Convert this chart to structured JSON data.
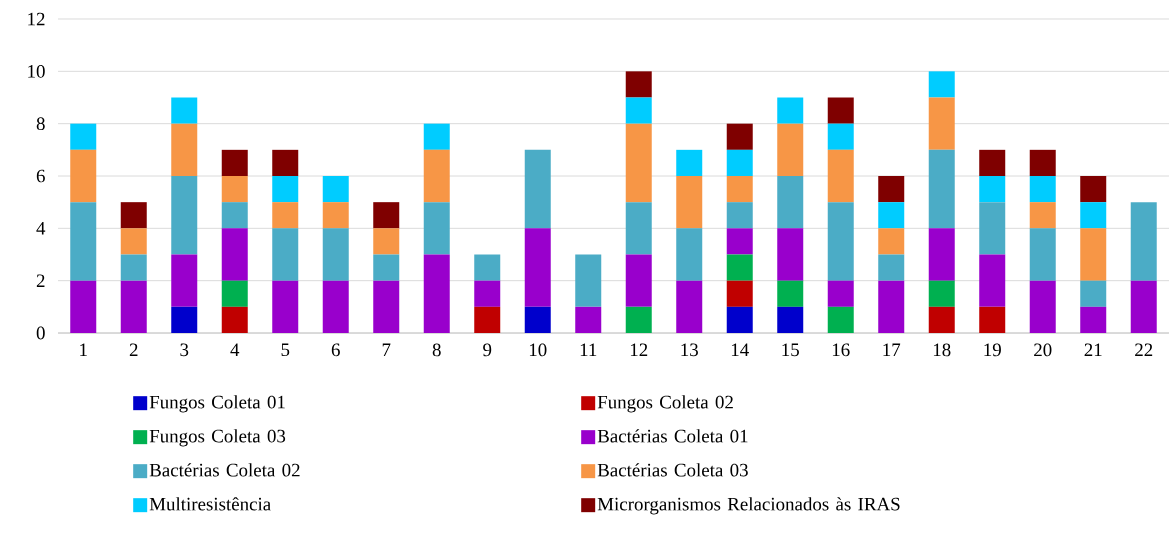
{
  "chart_data": {
    "type": "bar",
    "stacked": true,
    "categories": [
      "1",
      "2",
      "3",
      "4",
      "5",
      "6",
      "7",
      "8",
      "9",
      "10",
      "11",
      "12",
      "13",
      "14",
      "15",
      "16",
      "17",
      "18",
      "19",
      "20",
      "21",
      "22"
    ],
    "series": [
      {
        "name": "Fungos Coleta 01",
        "color": "#0000cc",
        "values": [
          0,
          0,
          1,
          0,
          0,
          0,
          0,
          0,
          0,
          1,
          0,
          0,
          0,
          1,
          1,
          0,
          0,
          0,
          0,
          0,
          0,
          0
        ]
      },
      {
        "name": "Fungos Coleta 02",
        "color": "#c00000",
        "values": [
          0,
          0,
          0,
          1,
          0,
          0,
          0,
          0,
          1,
          0,
          0,
          0,
          0,
          1,
          0,
          0,
          0,
          1,
          1,
          0,
          0,
          0
        ]
      },
      {
        "name": "Fungos Coleta 03",
        "color": "#00b050",
        "values": [
          0,
          0,
          0,
          1,
          0,
          0,
          0,
          0,
          0,
          0,
          0,
          1,
          0,
          1,
          1,
          1,
          0,
          1,
          0,
          0,
          0,
          0
        ]
      },
      {
        "name": "Bactérias Coleta 01",
        "color": "#9900cc",
        "values": [
          2,
          2,
          2,
          2,
          2,
          2,
          2,
          3,
          1,
          3,
          1,
          2,
          2,
          1,
          2,
          1,
          2,
          2,
          2,
          2,
          1,
          2
        ]
      },
      {
        "name": "Bactérias Coleta 02",
        "color": "#4bacc6",
        "values": [
          3,
          1,
          3,
          1,
          2,
          2,
          1,
          2,
          1,
          3,
          2,
          2,
          2,
          1,
          2,
          3,
          1,
          3,
          2,
          2,
          1,
          3
        ]
      },
      {
        "name": "Bactérias Coleta 03",
        "color": "#f79646",
        "values": [
          2,
          1,
          2,
          1,
          1,
          1,
          1,
          2,
          0,
          0,
          0,
          3,
          2,
          1,
          2,
          2,
          1,
          2,
          0,
          1,
          2,
          0
        ]
      },
      {
        "name": "Multiresistência",
        "color": "#00ccff",
        "values": [
          1,
          0,
          1,
          0,
          1,
          1,
          0,
          1,
          0,
          0,
          0,
          1,
          1,
          1,
          1,
          1,
          1,
          1,
          1,
          1,
          1,
          0
        ]
      },
      {
        "name": "Microrganismos Relacionados às IRAS",
        "color": "#7f0000",
        "values": [
          0,
          1,
          0,
          1,
          1,
          0,
          1,
          0,
          0,
          0,
          0,
          1,
          0,
          1,
          0,
          1,
          1,
          0,
          1,
          1,
          1,
          0
        ]
      }
    ],
    "ylim": [
      0,
      12
    ],
    "yticks": [
      0,
      2,
      4,
      6,
      8,
      10,
      12
    ],
    "grid": "y",
    "legend": "bottom"
  }
}
